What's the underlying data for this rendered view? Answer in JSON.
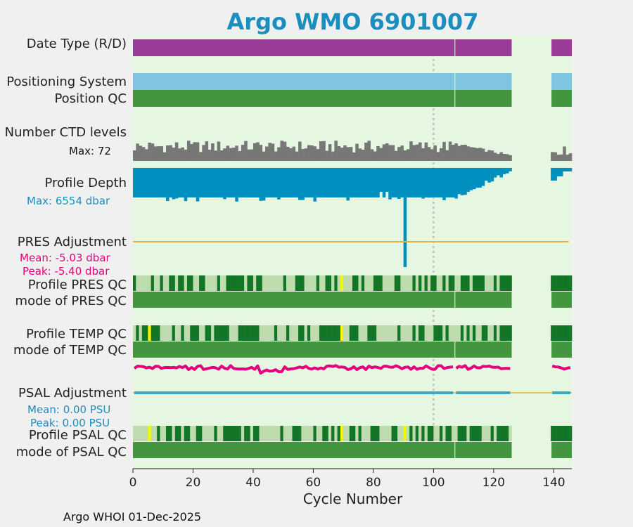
{
  "title": "Argo WMO 6901007",
  "footer": "Argo WHOI 01-Dec-2025",
  "labels": {
    "date_type": "Date Type (R/D)",
    "pos_system": "Positioning System",
    "pos_qc": "Position QC",
    "ctd_levels": "Number CTD levels",
    "ctd_max": "Max: 72",
    "profile_depth": "Profile Depth",
    "depth_max": "Max: 6554 dbar",
    "pres_adj": "PRES Adjustment",
    "pres_mean": "Mean: -5.03 dbar",
    "pres_peak": "Peak: -5.40 dbar",
    "prof_pres_qc": "Profile PRES QC",
    "mode_pres_qc": "mode of PRES QC",
    "prof_temp_qc": "Profile TEMP QC",
    "mode_temp_qc": "mode of TEMP QC",
    "psal_adj": "PSAL Adjustment",
    "psal_mean": "Mean: 0.00 PSU",
    "psal_peak": "Peak: 0.00 PSU",
    "prof_psal_qc": "Profile PSAL QC",
    "mode_psal_qc": "mode of PSAL QC"
  },
  "chart_data": {
    "type": "timeline",
    "xlabel": "Cycle Number",
    "xlim": [
      0,
      146
    ],
    "xticks": [
      0,
      20,
      40,
      60,
      80,
      100,
      120,
      140
    ],
    "reference_cycle": 100,
    "segments": [
      [
        0,
        107
      ],
      [
        107,
        126
      ],
      [
        139,
        146
      ]
    ],
    "ctd_max": 72,
    "depth_max_dbar": 6554,
    "depth_deep_cycle": 90,
    "pres_adjustment_mean": -5.03,
    "pres_adjustment_peak": -5.4,
    "psal_adjustment_mean": 0.0,
    "psal_adjustment_peak": 0.0,
    "temp_qc_flag_cycles": [
      5,
      69
    ],
    "pres_qc_flag_cycles": [
      69
    ],
    "psal_qc_flag_cycles": [
      5,
      69,
      90
    ],
    "colors": {
      "background": "#e5f7e0",
      "date_type": "#9b3d97",
      "positioning": "#7fc5df",
      "qc_good": "#43953f",
      "qc_dark": "#137526",
      "qc_light": "#bedcae",
      "qc_flag": "#f1f700",
      "ctd": "#777777",
      "depth": "#0090c0",
      "pres_adj": "#e8b040",
      "psal_adj": "#3aa8c8",
      "wiggle": "#e6007e"
    }
  }
}
